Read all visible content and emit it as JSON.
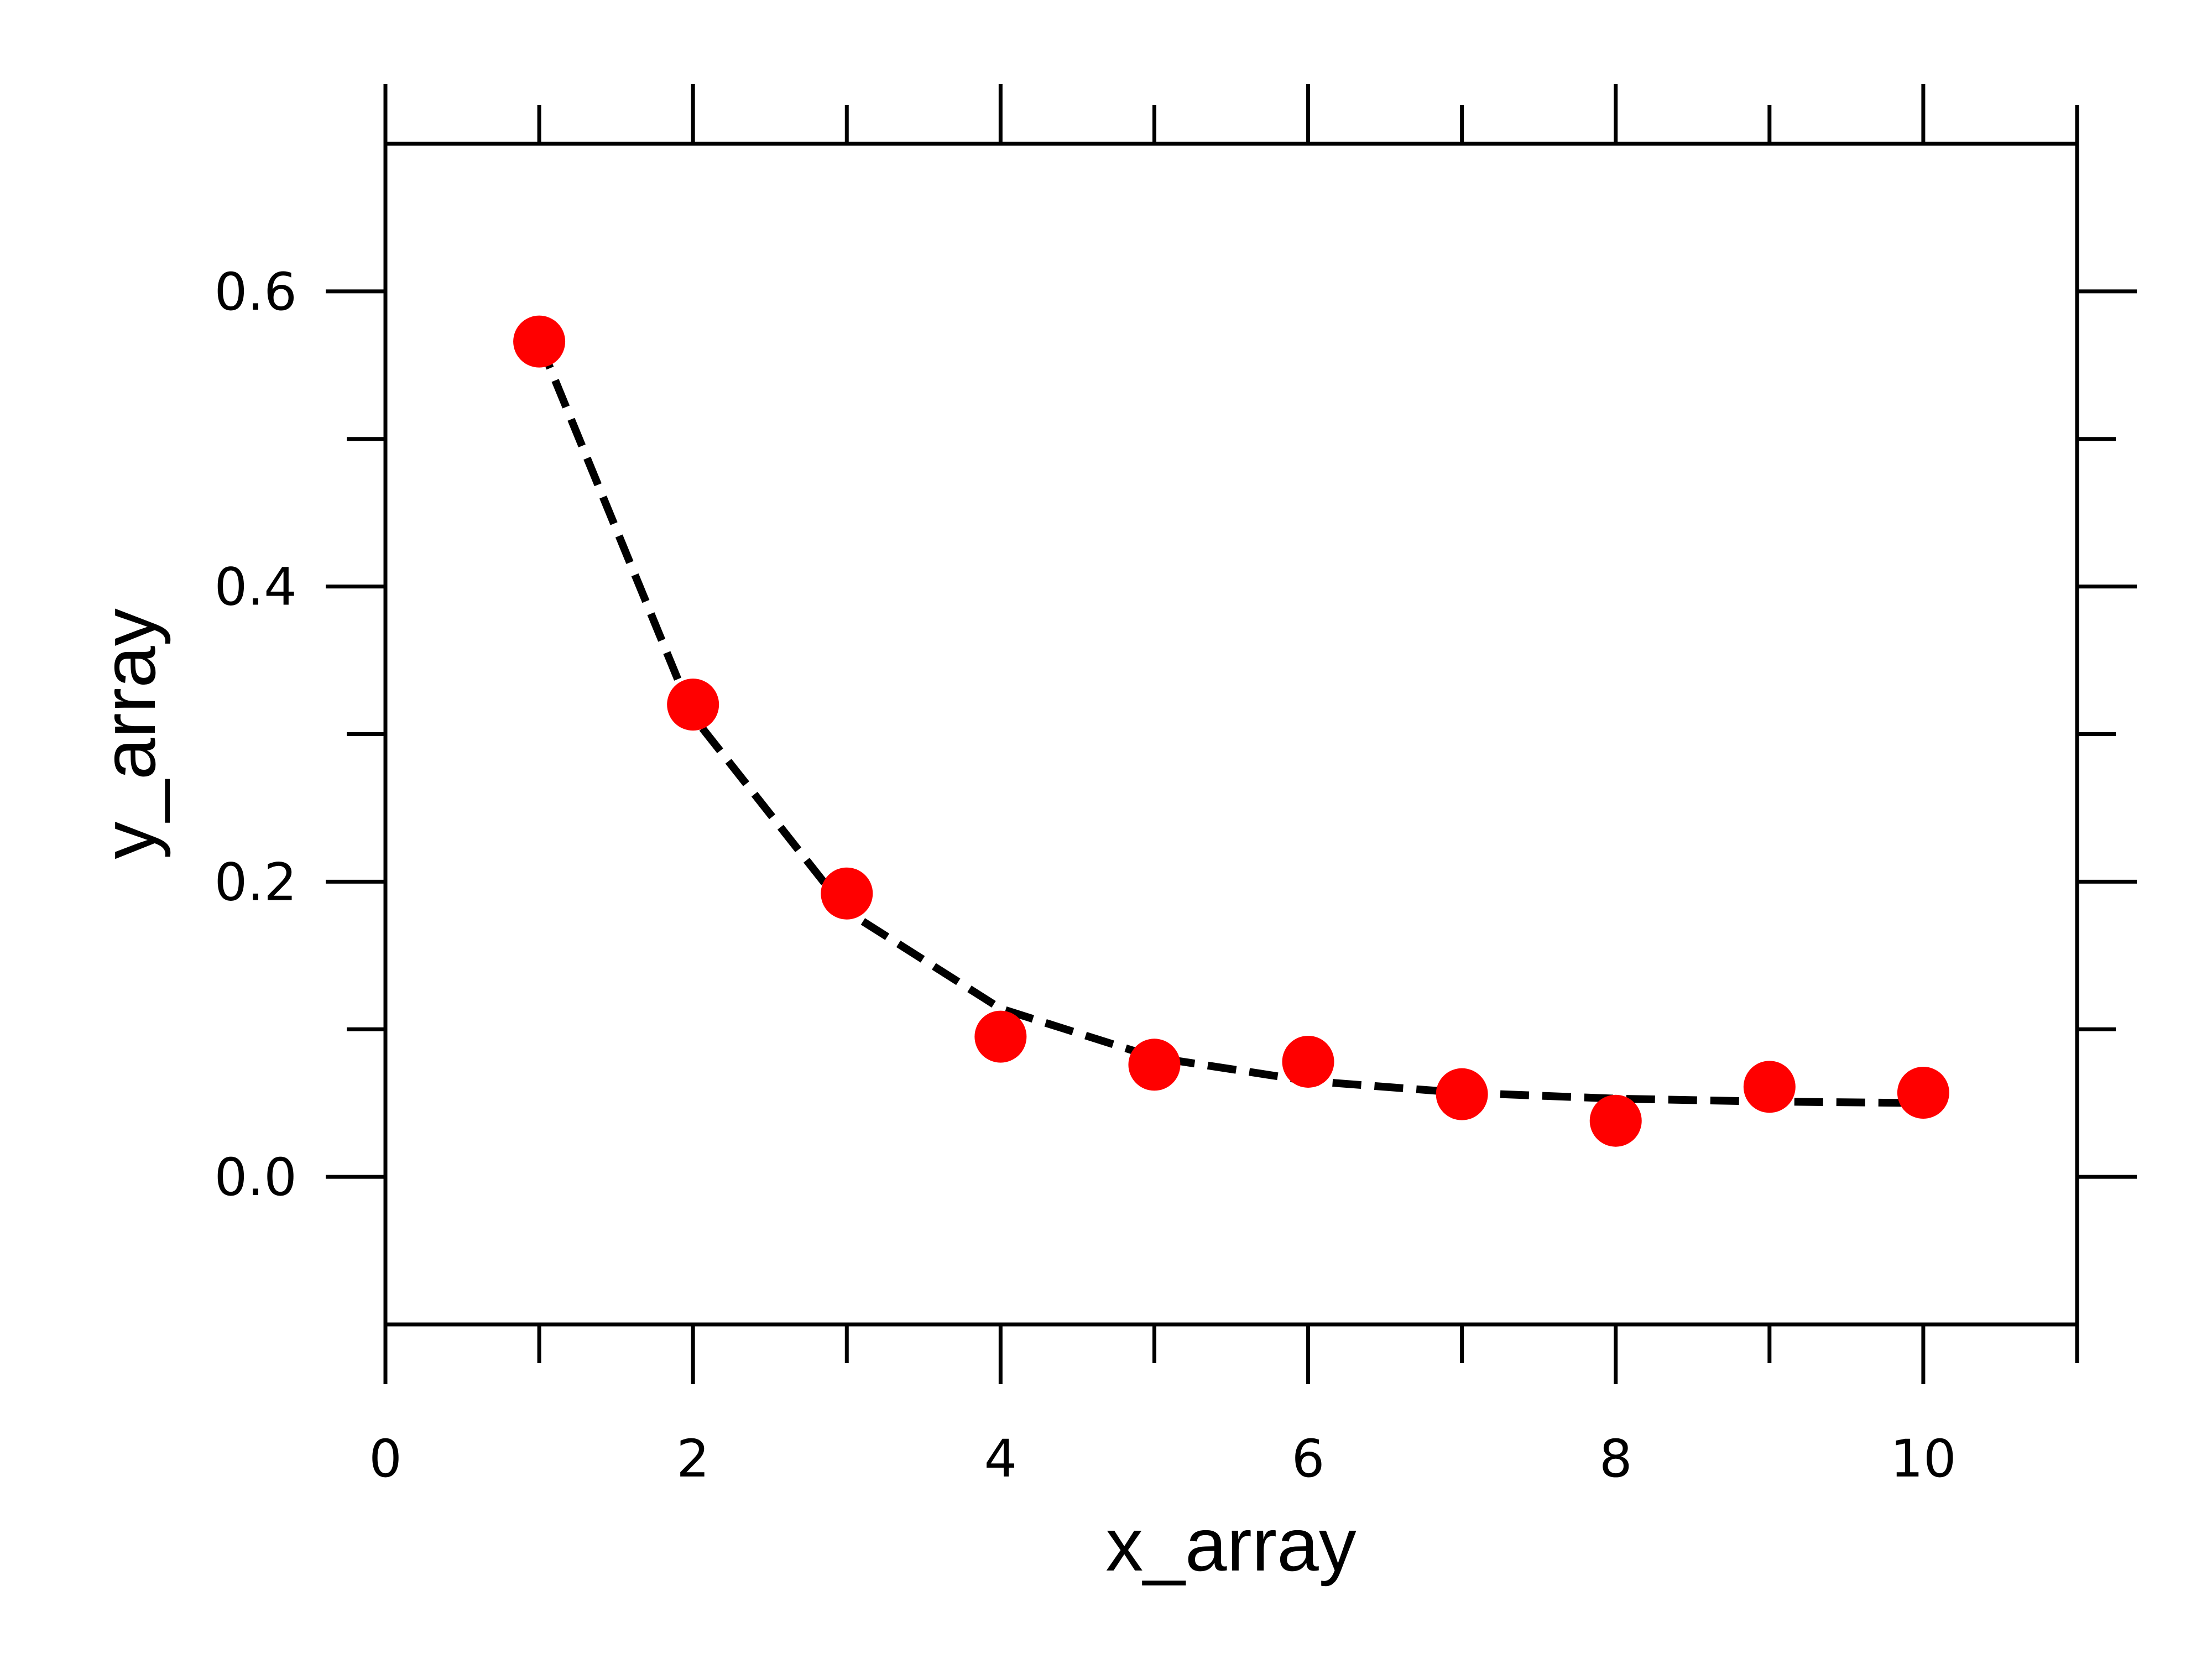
{
  "chart_data": {
    "type": "scatter",
    "title": "",
    "xlabel": "x_array",
    "ylabel": "y_array",
    "xlim": [
      0,
      11
    ],
    "ylim": [
      -0.1,
      0.7
    ],
    "x_ticks": [
      0,
      2,
      4,
      6,
      8,
      10
    ],
    "x_tick_labels": [
      "0",
      "2",
      "4",
      "6",
      "8",
      "10"
    ],
    "x_minor_ticks": [
      1,
      3,
      5,
      7,
      9,
      11
    ],
    "y_ticks": [
      0.0,
      0.2,
      0.4,
      0.6
    ],
    "y_tick_labels": [
      "0.0",
      "0.2",
      "0.4",
      "0.6"
    ],
    "y_minor_ticks": [
      0.1,
      0.3,
      0.5
    ],
    "grid": false,
    "legend": "none",
    "series": [
      {
        "kind": "scatter",
        "color": "#ff0000",
        "x": [
          1,
          2,
          3,
          4,
          5,
          6,
          7,
          8,
          9,
          10
        ],
        "y": [
          0.566,
          0.32,
          0.192,
          0.095,
          0.076,
          0.078,
          0.056,
          0.038,
          0.061,
          0.057
        ]
      },
      {
        "kind": "line",
        "color": "#000000",
        "dash": true,
        "x": [
          1,
          2,
          3,
          4,
          5,
          6,
          7,
          8,
          9,
          10
        ],
        "y": [
          0.566,
          0.312,
          0.18,
          0.114,
          0.081,
          0.065,
          0.057,
          0.053,
          0.051,
          0.05
        ]
      }
    ]
  }
}
